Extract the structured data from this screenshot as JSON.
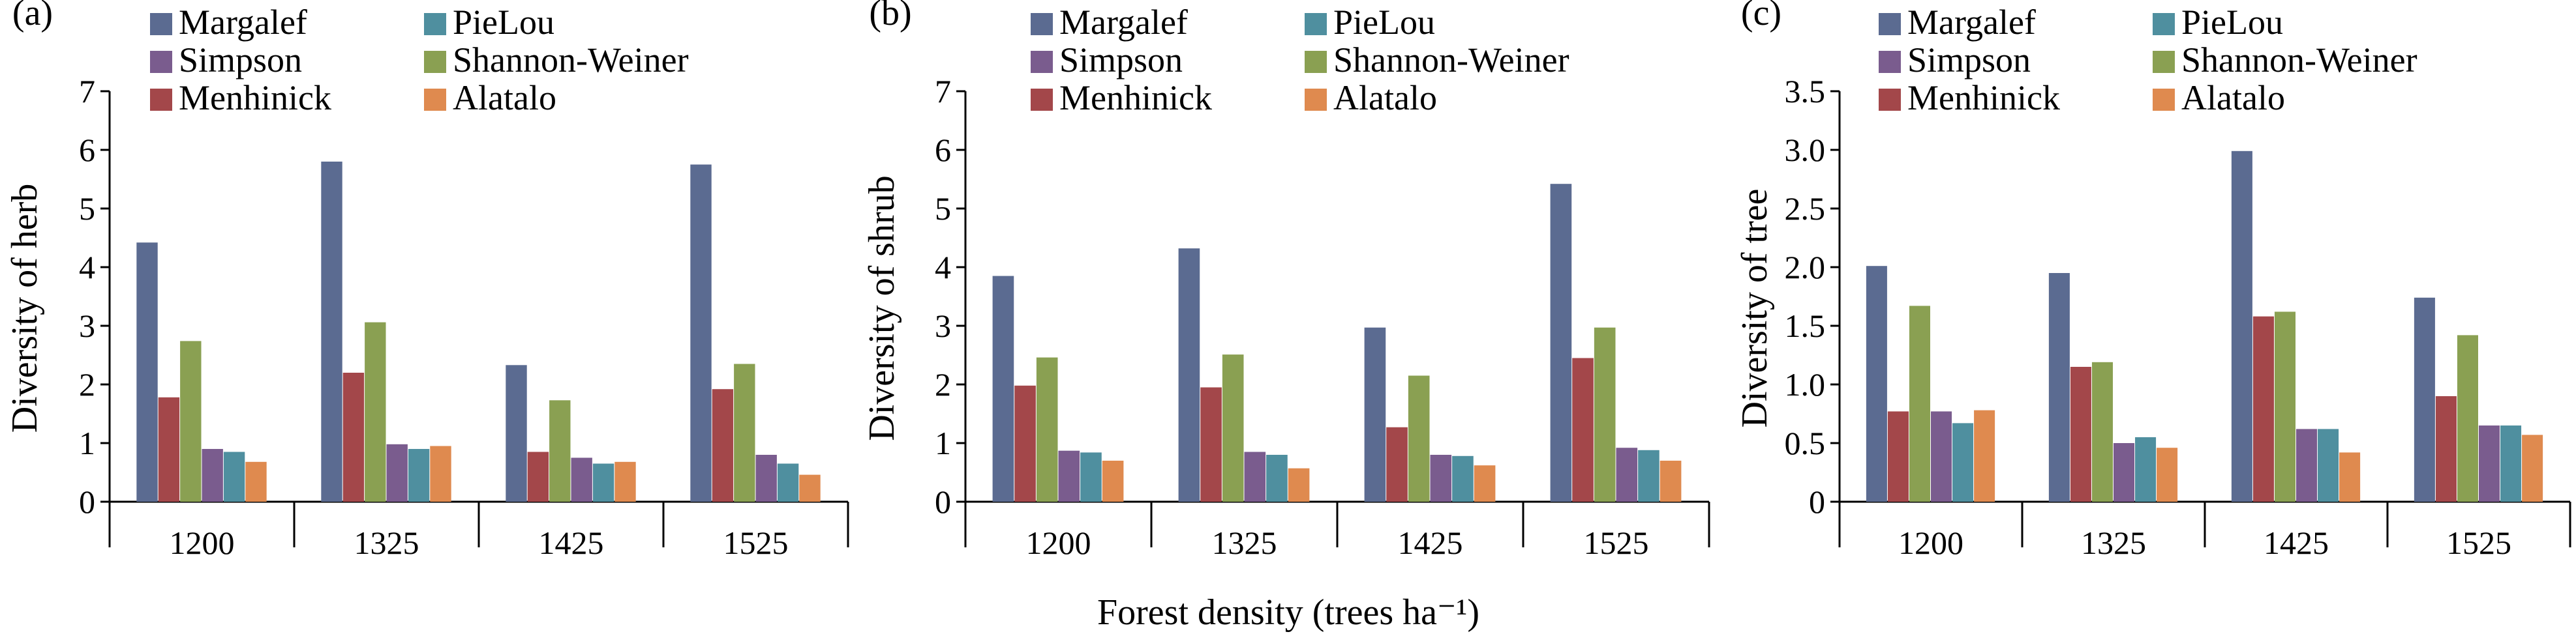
{
  "x_axis_title": "Forest density (trees ha⁻¹)",
  "series_colors": {
    "Margalef": "#5b6b91",
    "PieLou": "#4f8f9f",
    "Simpson": "#7a5c8e",
    "Shannon-Weiner": "#8aa052",
    "Menhinick": "#a3474a",
    "Alatalo": "#df8a4f"
  },
  "chart_data": [
    {
      "type": "bar",
      "panel_label": "(a)",
      "ylabel": "Diversity of herb",
      "categories": [
        "1200",
        "1325",
        "1425",
        "1525"
      ],
      "ylim": [
        0,
        7
      ],
      "yticks": [
        "0",
        "1",
        "2",
        "3",
        "4",
        "5",
        "6",
        "7"
      ],
      "legend_position": "top",
      "series": [
        {
          "name": "Margalef",
          "values": [
            4.42,
            5.8,
            2.33,
            5.75
          ]
        },
        {
          "name": "Menhinick",
          "values": [
            1.78,
            2.2,
            0.85,
            1.92
          ]
        },
        {
          "name": "Shannon-Weiner",
          "values": [
            2.74,
            3.06,
            1.73,
            2.35
          ]
        },
        {
          "name": "Simpson",
          "values": [
            0.9,
            0.98,
            0.75,
            0.8
          ]
        },
        {
          "name": "PieLou",
          "values": [
            0.85,
            0.9,
            0.65,
            0.65
          ]
        },
        {
          "name": "Alatalo",
          "values": [
            0.68,
            0.95,
            0.68,
            0.46
          ]
        }
      ]
    },
    {
      "type": "bar",
      "panel_label": "(b)",
      "ylabel": "Diversity of shrub",
      "categories": [
        "1200",
        "1325",
        "1425",
        "1525"
      ],
      "ylim": [
        0,
        7
      ],
      "yticks": [
        "0",
        "1",
        "2",
        "3",
        "4",
        "5",
        "6",
        "7"
      ],
      "legend_position": "top",
      "series": [
        {
          "name": "Margalef",
          "values": [
            3.85,
            4.32,
            2.97,
            5.42
          ]
        },
        {
          "name": "Menhinick",
          "values": [
            1.98,
            1.95,
            1.27,
            2.45
          ]
        },
        {
          "name": "Shannon-Weiner",
          "values": [
            2.46,
            2.51,
            2.15,
            2.97
          ]
        },
        {
          "name": "Simpson",
          "values": [
            0.87,
            0.85,
            0.8,
            0.92
          ]
        },
        {
          "name": "PieLou",
          "values": [
            0.84,
            0.8,
            0.78,
            0.88
          ]
        },
        {
          "name": "Alatalo",
          "values": [
            0.7,
            0.57,
            0.62,
            0.7
          ]
        }
      ]
    },
    {
      "type": "bar",
      "panel_label": "(c)",
      "ylabel": "Diversity of tree",
      "categories": [
        "1200",
        "1325",
        "1425",
        "1525"
      ],
      "ylim": [
        0,
        3.5
      ],
      "yticks": [
        "0",
        "0.5",
        "1.0",
        "1.5",
        "2.0",
        "2.5",
        "3.0",
        "3.5"
      ],
      "legend_position": "top",
      "series": [
        {
          "name": "Margalef",
          "values": [
            2.01,
            1.95,
            2.99,
            1.74
          ]
        },
        {
          "name": "Menhinick",
          "values": [
            0.77,
            1.15,
            1.58,
            0.9
          ]
        },
        {
          "name": "Shannon-Weiner",
          "values": [
            1.67,
            1.19,
            1.62,
            1.42
          ]
        },
        {
          "name": "Simpson",
          "values": [
            0.77,
            0.5,
            0.62,
            0.65
          ]
        },
        {
          "name": "PieLou",
          "values": [
            0.67,
            0.55,
            0.62,
            0.65
          ]
        },
        {
          "name": "Alatalo",
          "values": [
            0.78,
            0.46,
            0.42,
            0.57
          ]
        }
      ]
    }
  ],
  "legend_order": [
    "Margalef",
    "PieLou",
    "Simpson",
    "Shannon-Weiner",
    "Menhinick",
    "Alatalo"
  ]
}
